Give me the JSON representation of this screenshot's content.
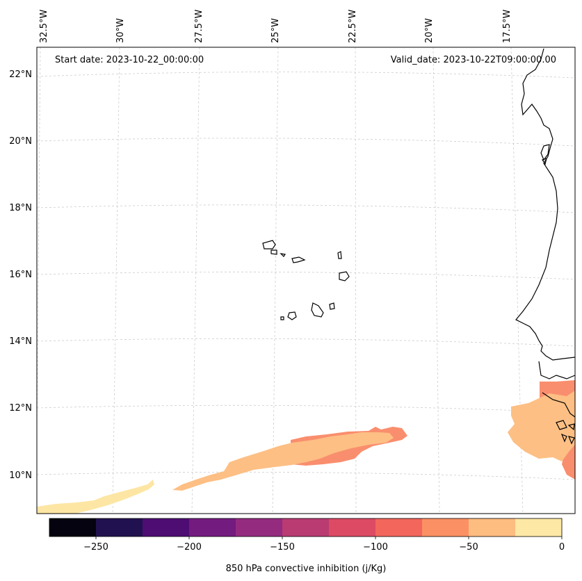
{
  "map": {
    "start_date": "Start date: 2023-10-22_00:00:00",
    "valid_date": "Valid_date: 2023-10-22T09:00:00.00",
    "longitude_labels": [
      "32.5°W",
      "30°W",
      "27.5°W",
      "25°W",
      "22.5°W",
      "20°W",
      "17.5°W"
    ],
    "latitude_labels": [
      "22°N",
      "20°N",
      "18°N",
      "16°N",
      "14°N",
      "12°N",
      "10°N"
    ],
    "gridlines": true,
    "coastline_color": "#000000",
    "field_colors": {
      "weak_inhibition": "#fdbf84",
      "moderate_inhibition": "#f98e6e",
      "very_weak_inhibition": "#fde6a4"
    }
  },
  "colorbar": {
    "label": "850 hPa convective inhibition (j/Kg)",
    "ticks": [
      "−250",
      "−200",
      "−150",
      "−100",
      "−50",
      "0"
    ],
    "levels": [
      -275,
      -250,
      -225,
      -200,
      -175,
      -150,
      -125,
      -100,
      -75,
      -50,
      -25,
      0
    ],
    "colors": [
      "#05030f",
      "#221150",
      "#4e0d73",
      "#741b80",
      "#952b7f",
      "#b93b72",
      "#dc4a63",
      "#f3665c",
      "#fc9065",
      "#fdbc80",
      "#fde8a5"
    ]
  }
}
